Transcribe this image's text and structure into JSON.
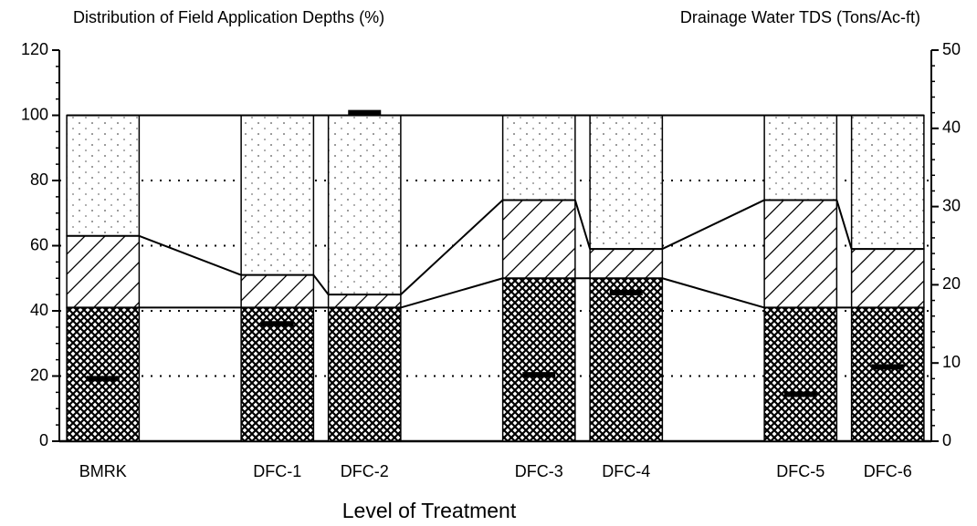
{
  "chart_data": {
    "type": "bar",
    "stacked": true,
    "title_left": "Distribution of Field Application Depths  (%)",
    "title_right": "Drainage Water TDS (Tons/Ac-ft)",
    "x_label": "Level of Treatment",
    "categories": [
      "BMRK",
      null,
      "DFC-1",
      "DFC-2",
      null,
      "DFC-3",
      "DFC-4",
      null,
      "DFC-5",
      "DFC-6"
    ],
    "series": [
      {
        "color": "#000000",
        "pattern": "crosshatch",
        "values": [
          41,
          null,
          41,
          41,
          null,
          50,
          50,
          null,
          41,
          41
        ]
      },
      {
        "color": "#000000",
        "pattern": "hatch",
        "values": [
          22,
          null,
          10,
          4,
          null,
          24,
          9,
          null,
          33,
          18
        ]
      },
      {
        "color": "#000000",
        "pattern": "dots",
        "values": [
          37,
          null,
          49,
          55,
          null,
          26,
          41,
          null,
          26,
          41
        ]
      },
      {
        "color": "#000000",
        "axis": "y2",
        "values": [
          8,
          null,
          15,
          42,
          null,
          8.5,
          19,
          null,
          6,
          9.5
        ]
      }
    ],
    "ylim": [
      0,
      120
    ],
    "yticks": [
      0,
      20,
      40,
      60,
      80,
      100,
      120
    ],
    "y2lim": [
      0,
      50
    ],
    "y2ticks": [
      0,
      10,
      20,
      30,
      40,
      50
    ],
    "grid": true
  }
}
